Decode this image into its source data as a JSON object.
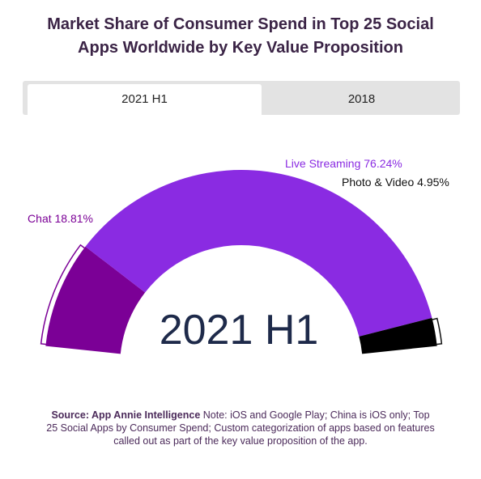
{
  "title": {
    "line1": "Market Share of Consumer Spend in Top 25 Social",
    "line2": "Apps Worldwide by Key Value Proposition"
  },
  "tabs": [
    {
      "label": "2021 H1",
      "active": true
    },
    {
      "label": "2018",
      "active": false
    }
  ],
  "center_label": "2021 H1",
  "chart_data": {
    "type": "pie",
    "variant": "semi-donut",
    "title": "Market Share of Consumer Spend in Top 25 Social Apps Worldwide by Key Value Proposition",
    "period": "2021 H1",
    "series": [
      {
        "name": "Chat",
        "value": 18.81,
        "label": "Chat 18.81%",
        "color": "#7b0096"
      },
      {
        "name": "Live Streaming",
        "value": 76.24,
        "label": "Live Streaming 76.24%",
        "color": "#8a2be2"
      },
      {
        "name": "Photo & Video",
        "value": 4.95,
        "label": "Photo & Video 4.95%",
        "color": "#000000"
      }
    ]
  },
  "source": {
    "bold": "Source: App Annie Intelligence",
    "text": " Note: iOS and Google Play; China is iOS only; Top 25 Social Apps by Consumer Spend; Custom categorization of apps based on features called out as part of the key value proposition of the app."
  }
}
